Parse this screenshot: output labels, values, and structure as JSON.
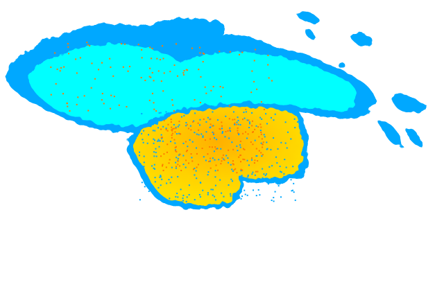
{
  "image": {
    "kind": "weather radar reflectivity echo",
    "background_color": "#ffffff",
    "colors": {
      "light_echo": "#00ffff",
      "light_echo_edge": "#00a8ff",
      "moderate_echo": "#ffd400",
      "moderate_core": "#ffb000",
      "strong_speckle": "#ff7a00"
    }
  }
}
